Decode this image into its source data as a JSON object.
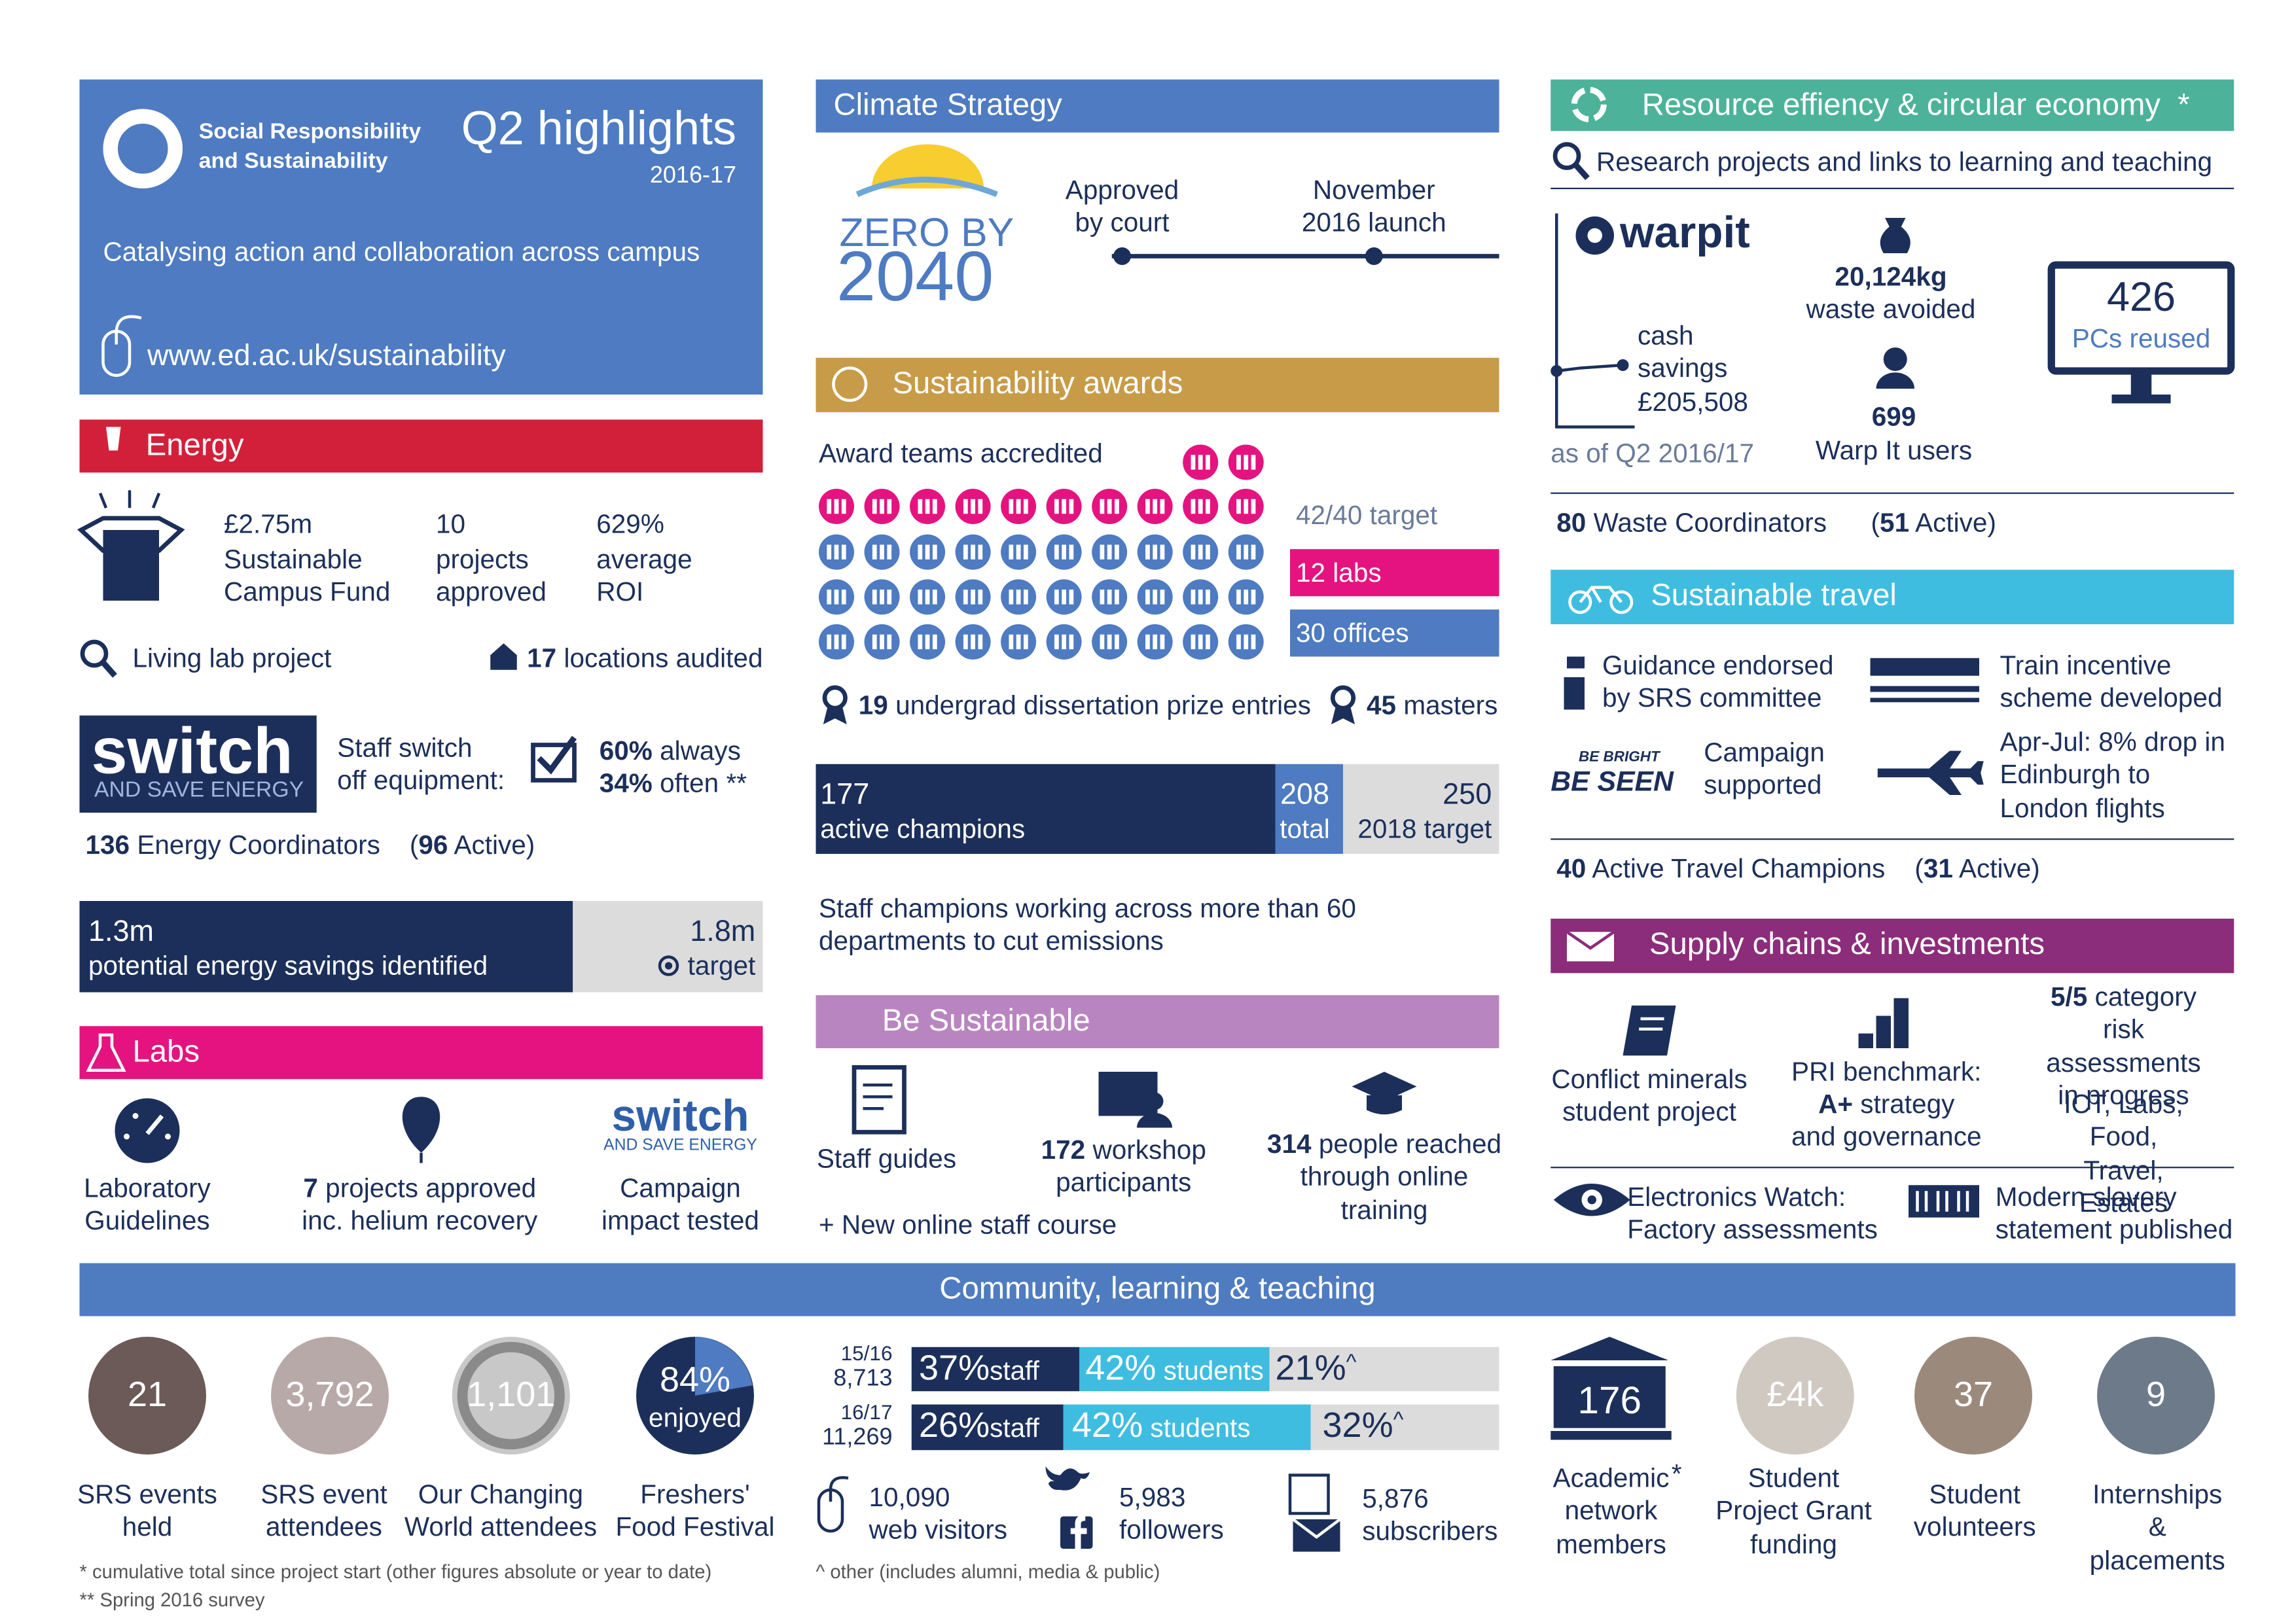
{
  "header": {
    "org": "Social Responsibility\nand Sustainability",
    "title": "Q2 highlights",
    "period": "2016-17",
    "tagline": "Catalysing action and collaboration across campus",
    "url": "www.ed.ac.uk/sustainability"
  },
  "energy": {
    "title": "Energy",
    "stats": [
      {
        "value": "£2.75m",
        "label": "Sustainable\nCampus Fund"
      },
      {
        "value": "10",
        "label": "projects\napproved"
      },
      {
        "value": "629%",
        "label": "average\nROI"
      }
    ],
    "living_lab": "Living lab project",
    "locations": {
      "count": "17",
      "label": "locations audited"
    },
    "switch_logo": {
      "word": "switch",
      "tagline": "AND SAVE ENERGY"
    },
    "staff_switch": "Staff switch\noff equipment:",
    "survey": [
      {
        "value": "60%",
        "label": "always"
      },
      {
        "value": "34%",
        "label": "often",
        "note": "**"
      }
    ],
    "coordinators": {
      "count": "136",
      "label": "Energy Coordinators",
      "open": "(",
      "active": "96",
      "close": "Active)"
    },
    "savings": {
      "identified": "1.3m",
      "identified_label": "potential energy savings identified",
      "target": "1.8m",
      "target_label": "target"
    }
  },
  "labs": {
    "title": "Labs",
    "guidelines": "Laboratory\nGuidelines",
    "projects": {
      "count": "7",
      "label": "projects approved\ninc. helium recovery"
    },
    "switch_logo": {
      "word": "switch",
      "tagline": "AND SAVE ENERGY"
    },
    "campaign": "Campaign\nimpact tested"
  },
  "climate": {
    "title": "Climate Strategy",
    "logo": {
      "line1": "ZERO BY",
      "line2": "2040"
    },
    "milestones": [
      "Approved\nby court",
      "November\n2016 launch"
    ]
  },
  "awards": {
    "title": "Sustainability awards",
    "accredited": "Award teams accredited",
    "target": "42/40 target",
    "labs": {
      "count": 12,
      "label": "12 labs"
    },
    "offices": {
      "count": 30,
      "label": "30 offices"
    },
    "undergrad": {
      "count": "19",
      "label": "undergrad dissertation prize entries"
    },
    "masters": {
      "count": "45",
      "label": "masters"
    },
    "champions": {
      "active": "177",
      "active_label": "active champions",
      "total": "208",
      "total_label": "total",
      "target": "250",
      "target_label": "2018 target"
    },
    "note": "Staff champions working across more than 60\ndepartments to cut emissions"
  },
  "be_sustainable": {
    "title": "Be Sustainable",
    "guides": "Staff guides",
    "workshop": {
      "count": "172",
      "label": "workshop\nparticipants"
    },
    "online": {
      "count": "314",
      "label": "people reached\nthrough online\ntraining"
    },
    "course": "+ New online staff course"
  },
  "resource": {
    "title": "Resource effiency & circular economy",
    "star": "*",
    "research": "Research projects and links to learning and teaching",
    "warpit": {
      "logo": "warpit",
      "savings": "cash\nsavings\n£205,508",
      "as_of": "as of Q2 2016/17",
      "waste": {
        "value": "20,124kg",
        "label": "waste avoided"
      },
      "users": {
        "value": "699",
        "label": "Warp It users"
      },
      "pcs": {
        "value": "426",
        "label": "PCs reused"
      }
    },
    "coordinators": {
      "count": "80",
      "label": "Waste Coordinators",
      "open": "(",
      "active": "51",
      "close": "Active)"
    }
  },
  "travel": {
    "title": "Sustainable travel",
    "guidance": "Guidance endorsed\nby SRS committee",
    "train": "Train incentive\nscheme developed",
    "be_seen": {
      "small": "BE BRIGHT",
      "big": "BE SEEN"
    },
    "campaign": "Campaign\nsupported",
    "flights": "Apr-Jul: 8% drop in\nEdinburgh to\nLondon flights",
    "champions": {
      "count": "40",
      "label": "Active Travel Champions",
      "open": "(",
      "active": "31",
      "close": "Active)"
    }
  },
  "supply": {
    "title": "Supply chains & investments",
    "minerals": "Conflict minerals\nstudent project",
    "pri": {
      "label": "PRI benchmark:",
      "bold": "A+",
      "rest": "strategy\nand governance"
    },
    "risk": {
      "bold": "5/5",
      "label": "category\nrisk assessments\nin progress",
      "areas": "ICT, Labs, Food,\nTravel, Estates"
    },
    "electronics": "Electronics Watch:\nFactory assessments",
    "slavery": "Modern slavery\nstatement published"
  },
  "community": {
    "title": "Community, learning & teaching",
    "circles": [
      {
        "value": "21",
        "label": "SRS events\nheld"
      },
      {
        "value": "3,792",
        "label": "SRS event\nattendees"
      },
      {
        "value": "1,101",
        "label": "Our Changing\nWorld attendees"
      },
      {
        "value": "84%",
        "sub": "enjoyed",
        "label": "Freshers'\nFood Festival"
      }
    ],
    "visitors": [
      {
        "year": "15/16",
        "total": "8,713",
        "staff": {
          "value": "37%",
          "label": "staff"
        },
        "students": {
          "value": "42%",
          "label": "students"
        },
        "other": {
          "value": "21%",
          "mark": "^"
        }
      },
      {
        "year": "16/17",
        "total": "11,269",
        "staff": {
          "value": "26%",
          "label": "staff"
        },
        "students": {
          "value": "42%",
          "label": "students"
        },
        "other": {
          "value": "32%",
          "mark": "^"
        }
      }
    ],
    "web": {
      "value": "10,090",
      "label": "web visitors"
    },
    "social": {
      "value": "5,983",
      "label": "followers"
    },
    "email": {
      "value": "5,876",
      "label": "subscribers"
    },
    "network": [
      {
        "value": "176",
        "label": "Academic\nnetwork\nmembers",
        "star": "*"
      },
      {
        "value": "£4k",
        "label": "Student\nProject Grant\nfunding"
      },
      {
        "value": "37",
        "label": "Student\nvolunteers"
      },
      {
        "value": "9",
        "label": "Internships &\nplacements"
      }
    ]
  },
  "footnotes": {
    "cumulative": {
      "mark": "*",
      "text": "cumulative total since project start (other figures absolute or year to date)"
    },
    "survey": {
      "mark": "**",
      "text": "Spring 2016 survey"
    },
    "other": {
      "mark": "^",
      "text": "other (includes alumni, media & public)"
    }
  }
}
